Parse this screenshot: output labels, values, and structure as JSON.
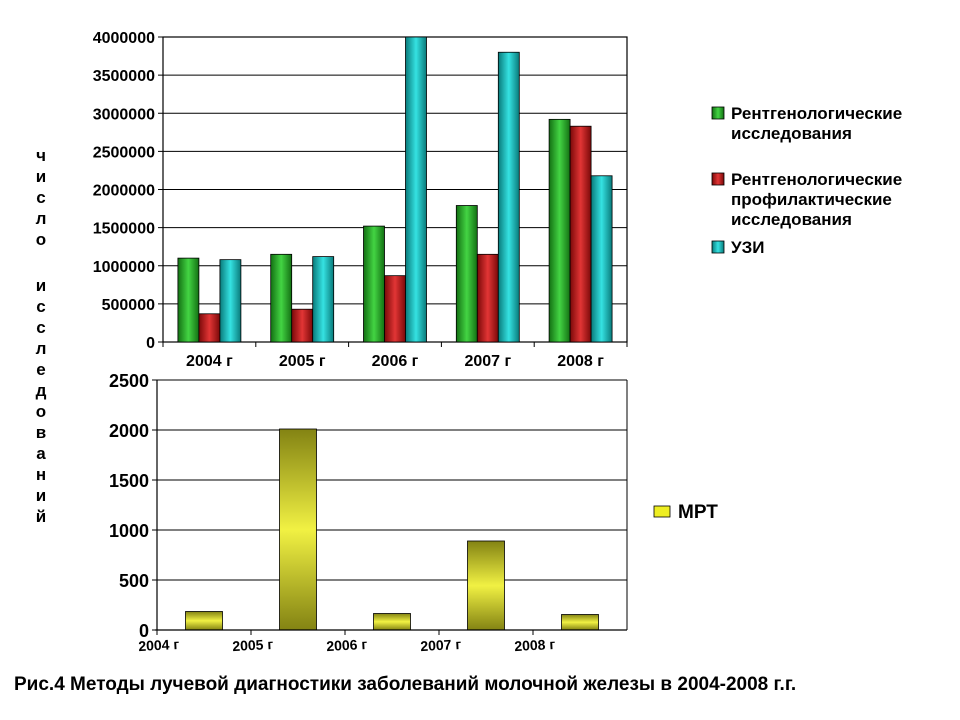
{
  "caption": "Рис.4 Методы лучевой диагностики заболеваний молочной железы в 2004-2008 г.г.",
  "ylabel": "число исследований",
  "chart_data": [
    {
      "type": "bar",
      "categories": [
        "2004 г",
        "2005 г",
        "2006 г",
        "2007 г",
        "2008 г"
      ],
      "ylim": [
        0,
        4000000
      ],
      "yticks": [
        0,
        500000,
        1000000,
        1500000,
        2000000,
        2500000,
        3000000,
        3500000,
        4000000
      ],
      "grid": true,
      "legend_position": "right",
      "series": [
        {
          "name": "Рентгенологические исследования",
          "color": "#22cc22",
          "values": [
            1100000,
            1150000,
            1520000,
            1790000,
            2920000
          ]
        },
        {
          "name": "Рентгенологические профилактические исследования",
          "color": "#dd1111",
          "values": [
            370000,
            430000,
            870000,
            1150000,
            2830000
          ]
        },
        {
          "name": "УЗИ",
          "color": "#11dddd",
          "values": [
            1080000,
            1120000,
            4000000,
            3800000,
            2180000
          ]
        }
      ]
    },
    {
      "type": "bar",
      "categories": [
        "2004 г",
        "2005 г",
        "2006 г",
        "2007 г",
        "2008 г"
      ],
      "ylim": [
        0,
        2500
      ],
      "yticks": [
        0,
        500,
        1000,
        1500,
        2000,
        2500
      ],
      "grid": true,
      "legend_position": "right",
      "series": [
        {
          "name": "МРТ",
          "color": "#eeee22",
          "values": [
            185,
            2010,
            165,
            890,
            155
          ]
        }
      ]
    }
  ]
}
